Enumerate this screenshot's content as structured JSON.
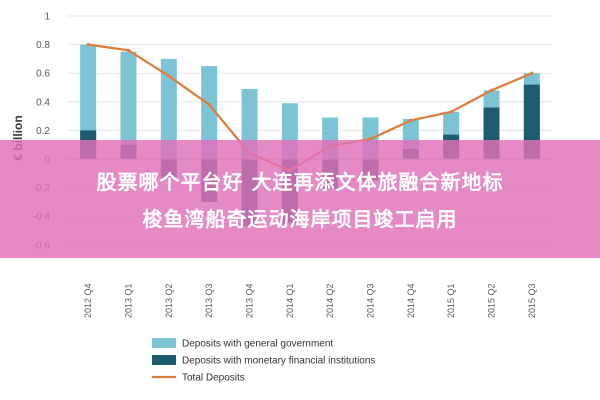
{
  "chart_data": {
    "type": "bar",
    "ylabel": "€ billion",
    "ylim": [
      -0.7,
      1
    ],
    "yticks": [
      1,
      0.8,
      0.6,
      0.4,
      0.2,
      0,
      -0.2,
      -0.4,
      -0.6
    ],
    "categories": [
      "2012 Q4",
      "2013 Q1",
      "2013 Q2",
      "2013 Q3",
      "2013 Q4",
      "2014 Q1",
      "2014 Q2",
      "2014 Q3",
      "2014 Q4",
      "2015 Q1",
      "2015 Q2",
      "2015 Q3"
    ],
    "series": [
      {
        "name": "Deposits with general government",
        "type": "bar",
        "color": "#7cc3d6",
        "values": [
          0.8,
          0.75,
          0.7,
          0.65,
          0.49,
          0.39,
          0.29,
          0.29,
          0.28,
          0.33,
          0.48,
          0.6
        ]
      },
      {
        "name": "Deposits with monetary financial institutions",
        "type": "bar",
        "color": "#1f5b6e",
        "values": [
          0.2,
          0.1,
          -0.13,
          -0.3,
          -0.47,
          -0.45,
          -0.21,
          -0.15,
          0.07,
          0.17,
          0.36,
          0.52
        ]
      },
      {
        "name": "Total Deposits",
        "type": "line",
        "color": "#e07b39",
        "values": [
          0.8,
          0.76,
          0.58,
          0.38,
          0.04,
          -0.08,
          0.09,
          0.14,
          0.27,
          0.33,
          0.48,
          0.6
        ]
      }
    ]
  },
  "banner": {
    "line1": "股票哪个平台好  大连再添文体旅融合新地标",
    "line2": "梭鱼湾船奇运动海岸项目竣工启用"
  }
}
